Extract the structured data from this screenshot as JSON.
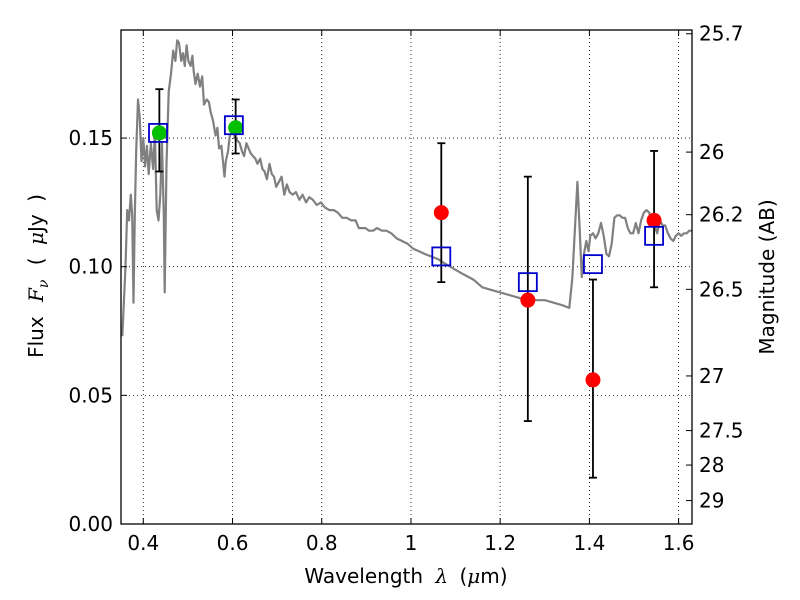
{
  "chart_data": {
    "type": "scatter",
    "xlabel": "Wavelength  λ (μm)",
    "ylabel": "Flux  F_ν  ( μJy )",
    "ylabel_parts": {
      "lead": "Flux",
      "sym_main": "F",
      "sym_sub": "ν",
      "open": "(",
      "unit_prefix": "μ",
      "unit": "Jy",
      "close": ")"
    },
    "xlabel_parts": {
      "lead": "Wavelength",
      "sym": "λ",
      "open": "(",
      "unit_prefix": "μ",
      "unit": "m)"
    },
    "y2label": "Magnitude (AB)",
    "xlim": [
      0.35,
      1.63
    ],
    "ylim": [
      0.0,
      0.192
    ],
    "grid": true,
    "x_ticks": [
      0.4,
      0.6,
      0.8,
      1.0,
      1.2,
      1.4,
      1.6
    ],
    "x_tick_labels": [
      "0.4",
      "0.6",
      "0.8",
      "1",
      "1.2",
      "1.4",
      "1.6"
    ],
    "y_ticks": [
      0.0,
      0.05,
      0.1,
      0.15
    ],
    "y_tick_labels": [
      "0.00",
      "0.05",
      "0.10",
      "0.15"
    ],
    "mag_ticks": [
      25.7,
      26,
      26.2,
      26.5,
      27,
      27.5,
      28,
      29
    ],
    "mag_tick_labels": [
      "25.7",
      "26",
      "26.2",
      "26.5",
      "27",
      "27.5",
      "28",
      "29"
    ],
    "colors": {
      "sed": "#808080",
      "observed": "#ff0000",
      "observed_alt": "#00c000",
      "model_box": "#0000cc",
      "errorbar": "#000000",
      "grid": "#000000"
    },
    "series": [
      {
        "style": "sed-line",
        "points": [
          [
            0.353,
            0.073
          ],
          [
            0.36,
            0.1
          ],
          [
            0.364,
            0.122
          ],
          [
            0.368,
            0.118
          ],
          [
            0.372,
            0.128
          ],
          [
            0.375,
            0.12
          ],
          [
            0.378,
            0.086
          ],
          [
            0.381,
            0.12
          ],
          [
            0.384,
            0.145
          ],
          [
            0.388,
            0.165
          ],
          [
            0.392,
            0.158
          ],
          [
            0.396,
            0.141
          ],
          [
            0.4,
            0.15
          ],
          [
            0.404,
            0.139
          ],
          [
            0.408,
            0.147
          ],
          [
            0.412,
            0.136
          ],
          [
            0.417,
            0.148
          ],
          [
            0.422,
            0.138
          ],
          [
            0.426,
            0.152
          ],
          [
            0.43,
            0.122
          ],
          [
            0.434,
            0.118
          ],
          [
            0.438,
            0.128
          ],
          [
            0.442,
            0.148
          ],
          [
            0.446,
            0.12
          ],
          [
            0.448,
            0.09
          ],
          [
            0.452,
            0.14
          ],
          [
            0.457,
            0.168
          ],
          [
            0.462,
            0.175
          ],
          [
            0.467,
            0.184
          ],
          [
            0.472,
            0.18
          ],
          [
            0.476,
            0.188
          ],
          [
            0.48,
            0.187
          ],
          [
            0.485,
            0.18
          ],
          [
            0.489,
            0.183
          ],
          [
            0.493,
            0.178
          ],
          [
            0.497,
            0.186
          ],
          [
            0.501,
            0.18
          ],
          [
            0.506,
            0.178
          ],
          [
            0.51,
            0.182
          ],
          [
            0.513,
            0.176
          ],
          [
            0.517,
            0.171
          ],
          [
            0.522,
            0.175
          ],
          [
            0.527,
            0.17
          ],
          [
            0.532,
            0.174
          ],
          [
            0.536,
            0.163
          ],
          [
            0.542,
            0.165
          ],
          [
            0.547,
            0.164
          ],
          [
            0.551,
            0.16
          ],
          [
            0.556,
            0.157
          ],
          [
            0.562,
            0.151
          ],
          [
            0.566,
            0.154
          ],
          [
            0.57,
            0.146
          ],
          [
            0.575,
            0.147
          ],
          [
            0.579,
            0.14
          ],
          [
            0.582,
            0.135
          ],
          [
            0.585,
            0.141
          ],
          [
            0.59,
            0.145
          ],
          [
            0.594,
            0.151
          ],
          [
            0.598,
            0.152
          ],
          [
            0.602,
            0.152
          ],
          [
            0.606,
            0.15
          ],
          [
            0.611,
            0.149
          ],
          [
            0.616,
            0.148
          ],
          [
            0.621,
            0.145
          ],
          [
            0.626,
            0.143
          ],
          [
            0.631,
            0.148
          ],
          [
            0.636,
            0.146
          ],
          [
            0.641,
            0.144
          ],
          [
            0.646,
            0.143
          ],
          [
            0.651,
            0.142
          ],
          [
            0.656,
            0.14
          ],
          [
            0.662,
            0.142
          ],
          [
            0.667,
            0.138
          ],
          [
            0.672,
            0.137
          ],
          [
            0.677,
            0.134
          ],
          [
            0.683,
            0.14
          ],
          [
            0.688,
            0.136
          ],
          [
            0.693,
            0.135
          ],
          [
            0.698,
            0.131
          ],
          [
            0.704,
            0.133
          ],
          [
            0.71,
            0.135
          ],
          [
            0.716,
            0.128
          ],
          [
            0.722,
            0.132
          ],
          [
            0.728,
            0.129
          ],
          [
            0.735,
            0.128
          ],
          [
            0.742,
            0.129
          ],
          [
            0.75,
            0.126
          ],
          [
            0.757,
            0.128
          ],
          [
            0.765,
            0.125
          ],
          [
            0.772,
            0.127
          ],
          [
            0.78,
            0.126
          ],
          [
            0.789,
            0.124
          ],
          [
            0.798,
            0.125
          ],
          [
            0.807,
            0.123
          ],
          [
            0.817,
            0.122
          ],
          [
            0.827,
            0.122
          ],
          [
            0.836,
            0.121
          ],
          [
            0.846,
            0.119
          ],
          [
            0.856,
            0.119
          ],
          [
            0.866,
            0.118
          ],
          [
            0.876,
            0.118
          ],
          [
            0.883,
            0.115
          ],
          [
            0.89,
            0.115
          ],
          [
            0.898,
            0.115
          ],
          [
            0.906,
            0.114
          ],
          [
            0.915,
            0.114
          ],
          [
            0.924,
            0.115
          ],
          [
            0.935,
            0.114
          ],
          [
            0.945,
            0.114
          ],
          [
            0.956,
            0.113
          ],
          [
            0.968,
            0.111
          ],
          [
            0.98,
            0.11
          ],
          [
            0.992,
            0.109
          ],
          [
            1.005,
            0.107
          ],
          [
            1.018,
            0.106
          ],
          [
            1.03,
            0.105
          ],
          [
            1.045,
            0.104
          ],
          [
            1.06,
            0.103
          ],
          [
            1.078,
            0.101
          ],
          [
            1.098,
            0.099
          ],
          [
            1.118,
            0.097
          ],
          [
            1.14,
            0.095
          ],
          [
            1.16,
            0.092
          ],
          [
            1.18,
            0.091
          ],
          [
            1.2,
            0.09
          ],
          [
            1.22,
            0.089
          ],
          [
            1.24,
            0.088
          ],
          [
            1.26,
            0.087
          ],
          [
            1.28,
            0.087
          ],
          [
            1.3,
            0.087
          ],
          [
            1.32,
            0.086
          ],
          [
            1.34,
            0.085
          ],
          [
            1.355,
            0.084
          ],
          [
            1.362,
            0.096
          ],
          [
            1.368,
            0.116
          ],
          [
            1.373,
            0.133
          ],
          [
            1.378,
            0.115
          ],
          [
            1.383,
            0.096
          ],
          [
            1.388,
            0.105
          ],
          [
            1.393,
            0.11
          ],
          [
            1.398,
            0.106
          ],
          [
            1.402,
            0.112
          ],
          [
            1.408,
            0.113
          ],
          [
            1.414,
            0.111
          ],
          [
            1.42,
            0.113
          ],
          [
            1.426,
            0.117
          ],
          [
            1.432,
            0.112
          ],
          [
            1.438,
            0.105
          ],
          [
            1.444,
            0.104
          ],
          [
            1.45,
            0.109
          ],
          [
            1.456,
            0.119
          ],
          [
            1.462,
            0.12
          ],
          [
            1.468,
            0.12
          ],
          [
            1.474,
            0.119
          ],
          [
            1.48,
            0.119
          ],
          [
            1.486,
            0.115
          ],
          [
            1.492,
            0.113
          ],
          [
            1.498,
            0.113
          ],
          [
            1.504,
            0.117
          ],
          [
            1.51,
            0.113
          ],
          [
            1.516,
            0.118
          ],
          [
            1.522,
            0.121
          ],
          [
            1.528,
            0.122
          ],
          [
            1.534,
            0.121
          ],
          [
            1.54,
            0.117
          ],
          [
            1.546,
            0.116
          ],
          [
            1.552,
            0.113
          ],
          [
            1.558,
            0.118
          ],
          [
            1.564,
            0.116
          ],
          [
            1.57,
            0.116
          ],
          [
            1.576,
            0.113
          ],
          [
            1.582,
            0.111
          ],
          [
            1.588,
            0.11
          ],
          [
            1.594,
            0.112
          ],
          [
            1.6,
            0.113
          ],
          [
            1.606,
            0.112
          ],
          [
            1.612,
            0.113
          ],
          [
            1.618,
            0.113
          ],
          [
            1.624,
            0.114
          ],
          [
            1.63,
            0.114
          ]
        ]
      },
      {
        "style": "model-boxes",
        "points": [
          [
            0.433,
            0.152
          ],
          [
            0.603,
            0.155
          ],
          [
            1.068,
            0.104
          ],
          [
            1.262,
            0.094
          ],
          [
            1.408,
            0.101
          ],
          [
            1.545,
            0.112
          ]
        ]
      },
      {
        "style": "observed-points",
        "points": [
          {
            "x": 0.436,
            "y": 0.152,
            "lo": 0.137,
            "hi": 0.169,
            "color": "#00c000"
          },
          {
            "x": 0.607,
            "y": 0.154,
            "lo": 0.144,
            "hi": 0.165,
            "color": "#00c000"
          },
          {
            "x": 1.068,
            "y": 0.121,
            "lo": 0.094,
            "hi": 0.148,
            "color": "#ff0000"
          },
          {
            "x": 1.262,
            "y": 0.087,
            "lo": 0.04,
            "hi": 0.135,
            "color": "#ff0000"
          },
          {
            "x": 1.408,
            "y": 0.056,
            "lo": 0.018,
            "hi": 0.095,
            "color": "#ff0000"
          },
          {
            "x": 1.545,
            "y": 0.118,
            "lo": 0.092,
            "hi": 0.145,
            "color": "#ff0000"
          }
        ]
      }
    ]
  }
}
